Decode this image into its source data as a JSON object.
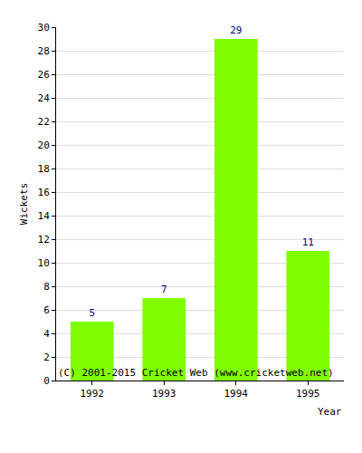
{
  "chart_data": {
    "type": "bar",
    "categories": [
      "1992",
      "1993",
      "1994",
      "1995"
    ],
    "values": [
      5,
      7,
      29,
      11
    ],
    "color": "#80ff00",
    "xlabel": "Year",
    "ylabel": "Wickets",
    "ylim": [
      0,
      30
    ],
    "yticks": [
      0,
      2,
      4,
      6,
      8,
      10,
      12,
      14,
      16,
      18,
      20,
      22,
      24,
      26,
      28,
      30
    ],
    "grid": true,
    "data_labels": true,
    "annotations": [
      "(C) 2001-2015 Cricket Web (www.cricketweb.net)"
    ]
  }
}
